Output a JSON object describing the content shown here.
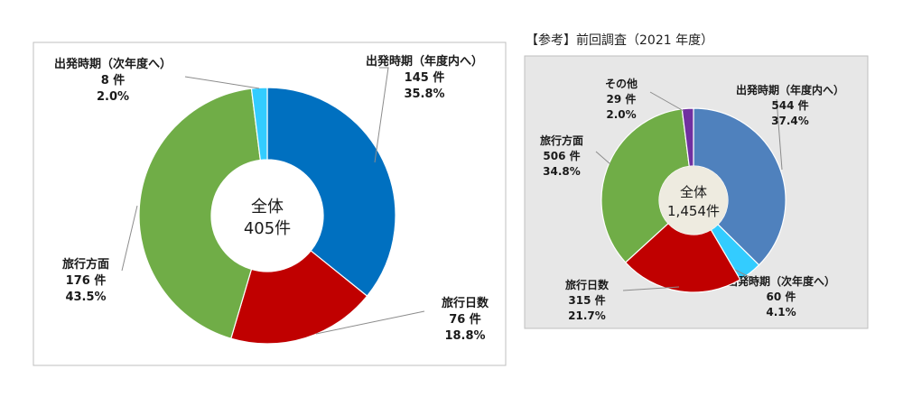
{
  "reference_title": "【参考】前回調査（2021 年度）",
  "chart_data": [
    {
      "type": "pie",
      "center_label": [
        "全体",
        "405件"
      ],
      "slices": [
        {
          "label": "出発時期（年度内へ）",
          "count_text": "145 件",
          "pct_text": "35.8%",
          "value": 145,
          "color": "#0070C0"
        },
        {
          "label": "旅行日数",
          "count_text": "76 件",
          "pct_text": "18.8%",
          "value": 76,
          "color": "#C00000"
        },
        {
          "label": "旅行方面",
          "count_text": "176 件",
          "pct_text": "43.5%",
          "value": 176,
          "color": "#70AD47"
        },
        {
          "label": "出発時期（次年度へ）",
          "count_text": "8 件",
          "pct_text": "2.0%",
          "value": 8,
          "color": "#33CCFF"
        }
      ]
    },
    {
      "type": "pie",
      "center_label": [
        "全体",
        "1,454件"
      ],
      "slices": [
        {
          "label": "出発時期（年度内へ）",
          "count_text": "544 件",
          "pct_text": "37.4%",
          "value": 544,
          "color": "#4F81BD"
        },
        {
          "label": "出発時期（次年度へ）",
          "count_text": "60 件",
          "pct_text": "4.1%",
          "value": 60,
          "color": "#33CCFF"
        },
        {
          "label": "旅行日数",
          "count_text": "315 件",
          "pct_text": "21.7%",
          "value": 315,
          "color": "#C00000"
        },
        {
          "label": "旅行方面",
          "count_text": "506 件",
          "pct_text": "34.8%",
          "value": 506,
          "color": "#70AD47"
        },
        {
          "label": "その他",
          "count_text": "29 件",
          "pct_text": "2.0%",
          "value": 29,
          "color": "#7030A0"
        }
      ]
    }
  ]
}
